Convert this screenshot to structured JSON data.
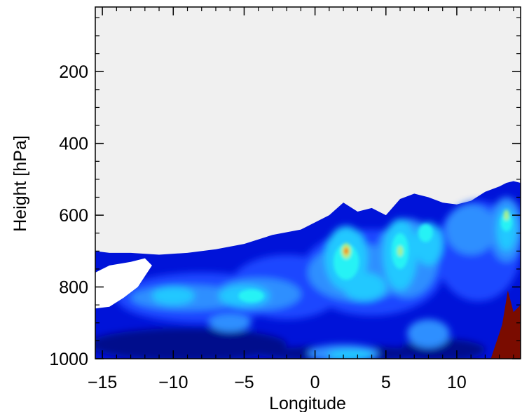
{
  "chart_data": {
    "type": "contour",
    "title": "",
    "xlabel": "Longitude",
    "ylabel": "Height [hPa]",
    "xlim": [
      -15.5,
      14.5
    ],
    "ylim": [
      1000,
      20
    ],
    "y_axis_inverted": true,
    "x_ticks": [
      -15,
      -10,
      -5,
      0,
      5,
      10
    ],
    "x_tick_labels": [
      "−15",
      "−10",
      "−5",
      "0",
      "5",
      "10"
    ],
    "y_ticks": [
      200,
      400,
      600,
      800,
      1000
    ],
    "y_tick_labels": [
      "200",
      "400",
      "600",
      "800",
      "1000"
    ],
    "grid": false,
    "background_color": "#f0f0f0",
    "colors": {
      "level_1": "#000a8c",
      "level_2": "#0013d9",
      "level_3": "#1e46ff",
      "level_4": "#2f8fff",
      "level_5": "#24c8ff",
      "level_6": "#27f2f5",
      "level_7": "#a6f090",
      "level_8": "#f0c020",
      "level_9": "#e84a18",
      "terrain": "#7a0c00"
    },
    "cloud_top_boundary": {
      "lon": [
        -15.5,
        -14.5,
        -13,
        -11,
        -9,
        -7,
        -5,
        -3,
        -1,
        0,
        1,
        2,
        3,
        4,
        5,
        6,
        7,
        8,
        9,
        10,
        11,
        12,
        13,
        13.5,
        14,
        14.5
      ],
      "pressure": [
        700,
        705,
        705,
        710,
        705,
        695,
        680,
        655,
        640,
        620,
        600,
        565,
        590,
        580,
        600,
        555,
        540,
        550,
        565,
        570,
        560,
        535,
        520,
        510,
        505,
        510
      ]
    },
    "clear_region_boundary": {
      "lon": [
        -15.5,
        -14.5,
        -13,
        -12,
        -11.5,
        -12,
        -12.5,
        -13.5,
        -14.5,
        -15.5
      ],
      "pressure": [
        760,
        740,
        730,
        720,
        740,
        770,
        800,
        830,
        855,
        860
      ]
    },
    "intensity_maxima": [
      {
        "lon": 2.2,
        "pressure": 700,
        "level": 9
      },
      {
        "lon": 6.0,
        "pressure": 700,
        "level": 7
      },
      {
        "lon": 13.5,
        "pressure": 600,
        "level": 7
      },
      {
        "lon": 7.8,
        "pressure": 650,
        "level": 6
      }
    ],
    "terrain": {
      "lon": [
        12.4,
        13.2,
        13.6,
        14.0,
        14.5,
        14.5
      ],
      "pressure": [
        1000,
        905,
        810,
        870,
        850,
        1000
      ]
    }
  }
}
